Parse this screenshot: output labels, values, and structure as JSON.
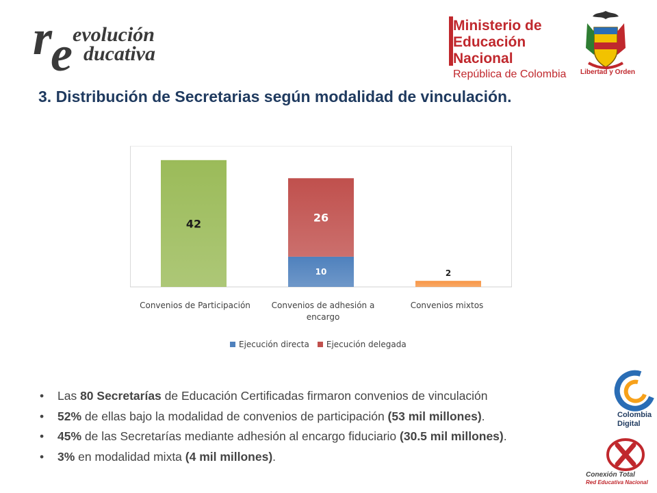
{
  "header": {
    "logo_left_r": "r",
    "logo_left_e": "e",
    "logo_left_line1": "evolución",
    "logo_left_line2": "ducativa",
    "ministry_line1": "Ministerio de",
    "ministry_line2": "Educación Nacional",
    "ministry_line3": "República de Colombia",
    "crest_caption": "Libertad y Orden"
  },
  "title": "3.  Distribución de Secretarias según modalidad de vinculación.",
  "chart_data": {
    "type": "bar",
    "stacked": true,
    "categories": [
      "Convenios de Participación",
      "Convenios de adhesión a encargo",
      "Convenios mixtos"
    ],
    "series": [
      {
        "name": "Ejecución directa",
        "values": [
          42,
          10,
          2
        ],
        "colors": [
          "#9bbb59",
          "#4f81bd",
          "#f79646"
        ],
        "labels": [
          "42",
          "10",
          "2"
        ]
      },
      {
        "name": "Ejecución delegada",
        "values": [
          0,
          26,
          0
        ],
        "colors": [
          "#c0504d",
          "#c0504d",
          "#c0504d"
        ],
        "labels": [
          "",
          "26",
          ""
        ]
      }
    ],
    "ylim": [
      0,
      44
    ],
    "legend_position": "bottom",
    "grid": false
  },
  "legend": [
    {
      "label": "Ejecución directa",
      "color": "#4f81bd"
    },
    {
      "label": "Ejecución delegada",
      "color": "#c0504d"
    }
  ],
  "bullets": [
    {
      "a": "Las ",
      "b": "80 Secretarías",
      "c": " de Educación Certificadas firmaron convenios de vinculación",
      "d": "",
      "e": ""
    },
    {
      "a": "",
      "b": "52%",
      "c": " de ellas bajo la modalidad de convenios de participación ",
      "d": "(53 mil millones)",
      "e": "."
    },
    {
      "a": "",
      "b": "45%",
      "c": " de las Secretarías mediante adhesión al encargo fiduciario ",
      "d": "(30.5 mil millones)",
      "e": "."
    },
    {
      "a": "",
      "b": "3%",
      "c": " en modalidad mixta ",
      "d": "(4 mil millones)",
      "e": "."
    }
  ],
  "right_logos": {
    "colombia_digital_1": "Colombia",
    "colombia_digital_2": "Digital",
    "conexion_total_1": "Conexión Total",
    "conexion_total_2": "Red Educativa Nacional"
  }
}
